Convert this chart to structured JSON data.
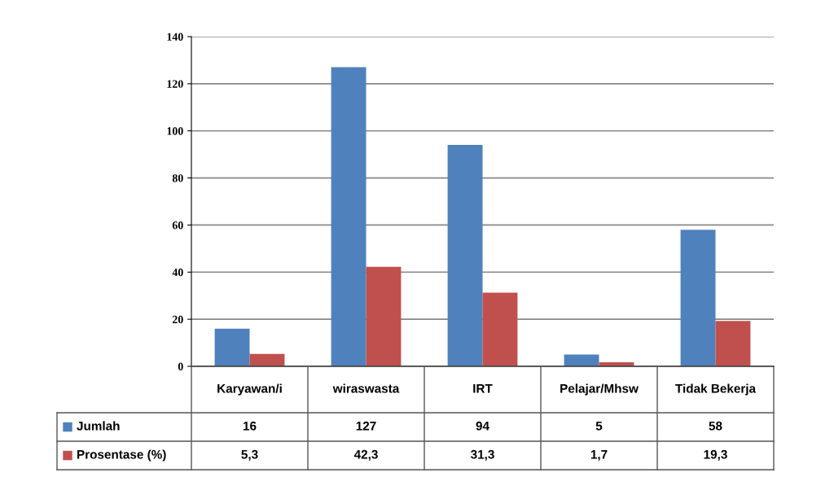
{
  "chart_data": {
    "type": "bar",
    "categories": [
      "Karyawan/i",
      "wiraswasta",
      "IRT",
      "Pelajar/Mhsw",
      "Tidak Bekerja"
    ],
    "series": [
      {
        "name": "Jumlah",
        "color": "#4f81bd",
        "values": [
          16,
          127,
          94,
          5,
          58
        ],
        "value_labels": [
          "16",
          "127",
          "94",
          "5",
          "58"
        ]
      },
      {
        "name": "Prosentase (%)",
        "color": "#c0504d",
        "values": [
          5.3,
          42.3,
          31.3,
          1.7,
          19.3
        ],
        "value_labels": [
          "5,3",
          "42,3",
          "31,3",
          "1,7",
          "19,3"
        ]
      }
    ],
    "ylim": [
      0,
      140
    ],
    "yticks": [
      0,
      20,
      40,
      60,
      80,
      100,
      120,
      140
    ],
    "grid": "y",
    "legend": "bottom"
  }
}
